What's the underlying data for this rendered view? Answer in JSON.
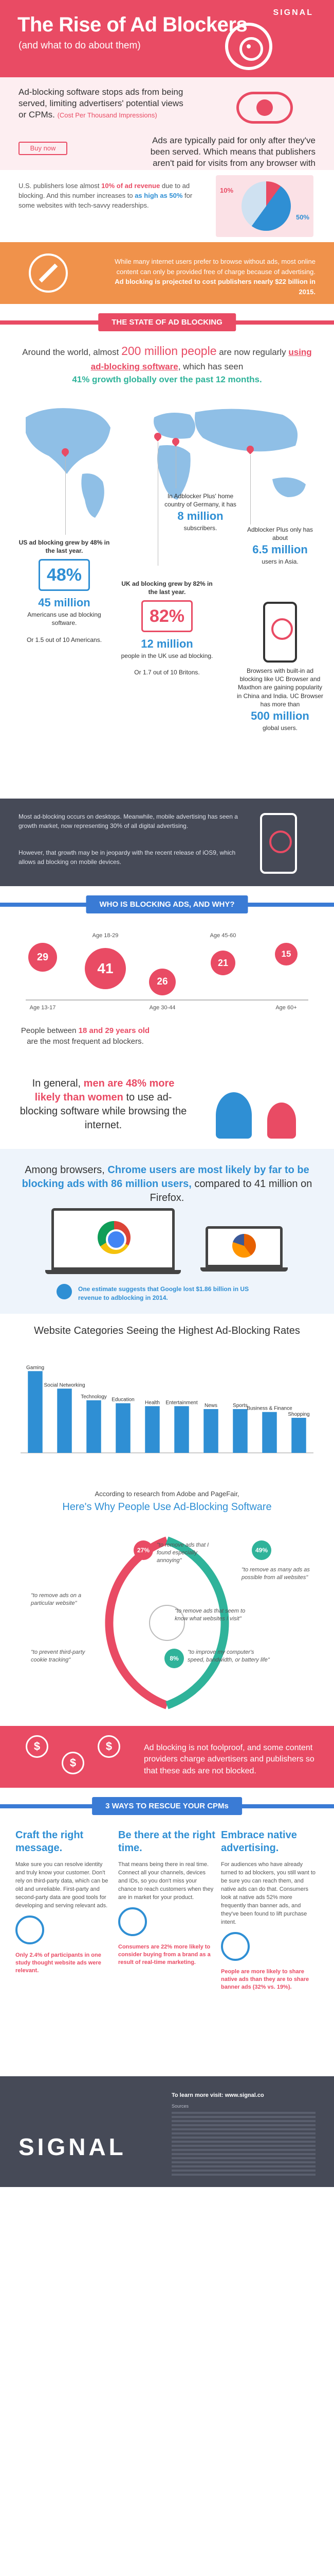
{
  "header": {
    "title": "The Rise of Ad Blockers",
    "subtitle": "(and what to do about them)",
    "logo": "SIGNAL"
  },
  "intro": {
    "lead": "Ad-blocking software stops ads from being served, limiting advertisers' potential views or CPMs.",
    "cpm_note": "(Cost Per Thousand Impressions)",
    "buy_button": "Buy now",
    "paid": "Ads are typically paid for only after they've been served. Which means that publishers aren't paid for visits from any browser with an ad-blocker."
  },
  "publishers": {
    "text_a": "U.S. publishers lose almost",
    "pct_a": "10% of ad revenue",
    "text_b": "due to ad blocking. And this number increases to",
    "pct_b": "as high as 50%",
    "text_c": "for some websites with tech-savvy readerships.",
    "pie_small": "10%",
    "pie_large": "50%",
    "colors": {
      "loss": "#e94b64",
      "high": "#2f8fd4"
    }
  },
  "revenue": {
    "text": "While many internet users prefer to browse without ads, most online content can only be provided free of charge because of advertising.",
    "strong": "Ad blocking is projected to cost publishers nearly $22 billion in 2015."
  },
  "state": {
    "heading": "THE STATE OF AD BLOCKING",
    "line1": "Around the world, almost",
    "big": "200 million people",
    "line2": "are now regularly",
    "uses": "using ad-blocking software",
    "line3": ", which has seen",
    "growth": "41% growth globally over the past 12 months."
  },
  "regions": {
    "germany": {
      "a": "In Adblocker Plus' home country of Germany, it has",
      "n": "8 million",
      "b": "subscribers."
    },
    "asia": {
      "a": "Adblocker Plus only has about",
      "n": "6.5 million",
      "b": "users in Asia."
    },
    "us": {
      "head": "US ad blocking grew by 48% in the last year.",
      "pct": "48%",
      "n": "45 million",
      "a": "Americans use ad blocking software.",
      "b": "Or 1.5 out of 10 Americans."
    },
    "uk": {
      "head": "UK ad blocking grew by 82% in the last year.",
      "pct": "82%",
      "n": "12 million",
      "a": "people in the UK use ad blocking.",
      "b": "Or 1.7 out of 10 Britons."
    },
    "china": {
      "a": "Browsers with built-in ad blocking like UC Browser and Maxthon are gaining popularity in China and India. UC Browser has more than",
      "n": "500 million",
      "b": "global users."
    }
  },
  "mobile": {
    "p1": "Most ad-blocking occurs on desktops. Meanwhile, mobile advertising has seen a growth market, now representing 30% of all digital advertising.",
    "p2": "However, that growth may be in jeopardy with the recent release of iOS9, which allows ad blocking on mobile devices."
  },
  "who": {
    "heading": "WHO IS BLOCKING ADS, AND WHY?",
    "ages": [
      {
        "pct": "29",
        "label": "Age 13-17"
      },
      {
        "pct": "41",
        "label": "Age 18-29"
      },
      {
        "pct": "26",
        "label": "Age 30-44"
      },
      {
        "pct": "21",
        "label": "Age 45-60"
      },
      {
        "pct": "15",
        "label": "Age 60+"
      }
    ],
    "note_a": "People between",
    "note_hl": "18 and 29 years old",
    "note_b": "are the most frequent ad blockers."
  },
  "gender": {
    "a": "In general,",
    "hl": "men are 48% more likely than women",
    "b": "to use ad-blocking software while browsing the internet."
  },
  "browsers": {
    "a": "Among browsers,",
    "hl": "Chrome users are most likely by far to be blocking ads with 86 million users,",
    "b": "compared to 41 million on Firefox.",
    "estimate": "One estimate suggests that Google lost $1.86 billion in US revenue to adblocking in 2014."
  },
  "chart_data": {
    "type": "bar",
    "title": "Website Categories Seeing the Highest Ad-Blocking Rates",
    "categories": [
      "Gaming",
      "Social Networking",
      "Technology",
      "Education",
      "Health",
      "Entertainment",
      "News",
      "Sports",
      "Business & Finance",
      "Shopping"
    ],
    "values": [
      28,
      22,
      18,
      17,
      16,
      16,
      15,
      15,
      14,
      12
    ],
    "ylim": [
      0,
      30
    ],
    "color": "#2f8fd4"
  },
  "why": {
    "source": "According to research from Adobe and PageFair,",
    "title": "Here's Why People Use Ad-Blocking Software",
    "reasons": [
      {
        "pct": "27%",
        "text": "\"to remove ads that I found especially annoying\"",
        "color": "#e94b64"
      },
      {
        "pct": "",
        "text": "\"to remove ads on a particular website\"",
        "color": "#e94b64"
      },
      {
        "pct": "",
        "text": "\"to prevent third-party cookie tracking\"",
        "color": "#e94b64"
      },
      {
        "pct": "49%",
        "text": "\"to remove as many ads as possible from all websites\"",
        "color": "#2fb39a"
      },
      {
        "pct": "",
        "text": "\"to remove ads that seem to know what websites I visit\"",
        "color": "#2fb39a"
      },
      {
        "pct": "8%",
        "text": "\"to improve my computer's speed, bandwidth, or battery life\"",
        "color": "#2fb39a"
      }
    ]
  },
  "foot": {
    "text": "Ad blocking is not foolproof, and some content providers charge advertisers and publishers so that these ads are not blocked."
  },
  "ways": {
    "heading": "3 WAYS TO RESCUE YOUR CPMs",
    "items": [
      {
        "title": "Craft the right message.",
        "body": "Make sure you can resolve identity and truly know your customer. Don't rely on third-party data, which can be old and unreliable. First-party and second-party data are good tools for developing and serving relevant ads.",
        "stat": "Only 2.4% of participants in one study thought website ads were relevant."
      },
      {
        "title": "Be there at the right time.",
        "body": "That means being there in real time. Connect all your channels, devices and IDs, so you don't miss your chance to reach customers when they are in market for your product.",
        "stat": "Consumers are 22% more likely to consider buying from a brand as a result of real-time marketing."
      },
      {
        "title": "Embrace native advertising.",
        "body": "For audiences who have already turned to ad blockers, you still want to be sure you can reach them, and native ads can do that. Consumers look at native ads 52% more frequently than banner ads, and they've been found to lift purchase intent.",
        "stat": "People are more likely to share native ads than they are to share banner ads (32% vs. 19%)."
      }
    ]
  },
  "footer": {
    "brand": "SIGNAL",
    "sources_title": "To learn more visit: www.signal.co",
    "sources": [
      "Sources"
    ]
  }
}
